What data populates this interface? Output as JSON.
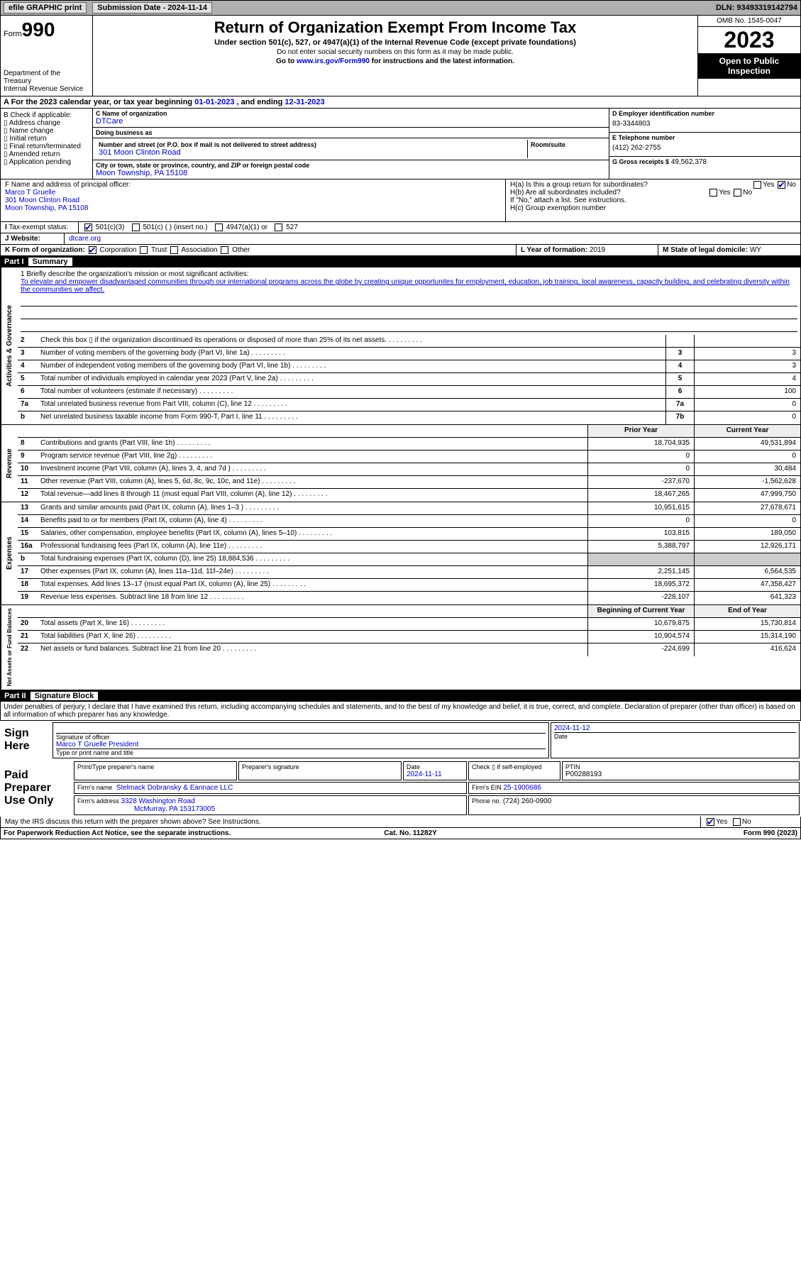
{
  "topbar": {
    "efile_label": "efile GRAPHIC print",
    "submission_label": "Submission Date - 2024-11-14",
    "dln_label": "DLN: 93493319142794"
  },
  "header": {
    "form_label": "Form",
    "form_number": "990",
    "title": "Return of Organization Exempt From Income Tax",
    "subtitle": "Under section 501(c), 527, or 4947(a)(1) of the Internal Revenue Code (except private foundations)",
    "note1": "Do not enter social security numbers on this form as it may be made public.",
    "note2_pre": "Go to ",
    "note2_link": "www.irs.gov/Form990",
    "note2_post": " for instructions and the latest information.",
    "dept": "Department of the Treasury",
    "irs": "Internal Revenue Service",
    "omb": "OMB No. 1545-0047",
    "year": "2023",
    "inspection": "Open to Public Inspection"
  },
  "period": {
    "text_pre": "A For the 2023 calendar year, or tax year beginning ",
    "begin": "01-01-2023",
    "mid": "   , and ending ",
    "end": "12-31-2023"
  },
  "boxB": {
    "label": "B Check if applicable:",
    "items": [
      "Address change",
      "Name change",
      "Initial return",
      "Final return/terminated",
      "Amended return",
      "Application pending"
    ]
  },
  "boxC": {
    "name_label": "C Name of organization",
    "name": "DTCare",
    "dba_label": "Doing business as",
    "street_label": "Number and street (or P.O. box if mail is not delivered to street address)",
    "street": "301 Moon Clinton Road",
    "room_label": "Room/suite",
    "city_label": "City or town, state or province, country, and ZIP or foreign postal code",
    "city": "Moon Township, PA  15108"
  },
  "boxD": {
    "label": "D Employer identification number",
    "value": "83-3344803"
  },
  "boxE": {
    "label": "E Telephone number",
    "value": "(412) 262-2755"
  },
  "boxG": {
    "label": "G Gross receipts $",
    "value": "49,562,378"
  },
  "boxF": {
    "label": "F  Name and address of principal officer:",
    "name": "Marco T Gruelle",
    "street": "301 Moon Clinton Road",
    "city": "Moon Township, PA  15108"
  },
  "boxH": {
    "a_label": "H(a)  Is this a group return for subordinates?",
    "b_label": "H(b)  Are all subordinates included?",
    "b_note": "If \"No,\" attach a list. See instructions.",
    "c_label": "H(c)  Group exemption number"
  },
  "boxI": {
    "label": "Tax-exempt status:",
    "opt1": "501(c)(3)",
    "opt2": "501(c) (  ) (insert no.)",
    "opt3": "4947(a)(1) or",
    "opt4": "527"
  },
  "boxJ": {
    "label": "Website:",
    "value": "dtcare.org"
  },
  "boxK": {
    "label": "K Form of organization:",
    "opts": [
      "Corporation",
      "Trust",
      "Association",
      "Other"
    ]
  },
  "boxL": {
    "label": "L Year of formation:",
    "value": "2019"
  },
  "boxM": {
    "label": "M State of legal domicile:",
    "value": "WY"
  },
  "part1": {
    "label": "Part I",
    "title": "Summary"
  },
  "mission": {
    "lead": "1   Briefly describe the organization's mission or most significant activities:",
    "text": "To elevate and empower disadvantaged communities through our international programs across the globe by creating unique opportunites for employment, education, job training, local awareness, capacity building, and celebrating diversity within the communities we affect."
  },
  "lines_gov": [
    {
      "n": "2",
      "d": "Check this box ▯ if the organization discontinued its operations or disposed of more than 25% of its net assets.",
      "box": "",
      "amt": ""
    },
    {
      "n": "3",
      "d": "Number of voting members of the governing body (Part VI, line 1a)",
      "box": "3",
      "amt": "3"
    },
    {
      "n": "4",
      "d": "Number of independent voting members of the governing body (Part VI, line 1b)",
      "box": "4",
      "amt": "3"
    },
    {
      "n": "5",
      "d": "Total number of individuals employed in calendar year 2023 (Part V, line 2a)",
      "box": "5",
      "amt": "4"
    },
    {
      "n": "6",
      "d": "Total number of volunteers (estimate if necessary)",
      "box": "6",
      "amt": "100"
    },
    {
      "n": "7a",
      "d": "Total unrelated business revenue from Part VIII, column (C), line 12",
      "box": "7a",
      "amt": "0"
    },
    {
      "n": "b",
      "d": "Net unrelated business taxable income from Form 990-T, Part I, line 11",
      "box": "7b",
      "amt": "0"
    }
  ],
  "rev_header": {
    "prior": "Prior Year",
    "current": "Current Year"
  },
  "lines_rev": [
    {
      "n": "8",
      "d": "Contributions and grants (Part VIII, line 1h)",
      "p": "18,704,935",
      "c": "49,531,894"
    },
    {
      "n": "9",
      "d": "Program service revenue (Part VIII, line 2g)",
      "p": "0",
      "c": "0"
    },
    {
      "n": "10",
      "d": "Investment income (Part VIII, column (A), lines 3, 4, and 7d )",
      "p": "0",
      "c": "30,484"
    },
    {
      "n": "11",
      "d": "Other revenue (Part VIII, column (A), lines 5, 6d, 8c, 9c, 10c, and 11e)",
      "p": "-237,670",
      "c": "-1,562,628"
    },
    {
      "n": "12",
      "d": "Total revenue—add lines 8 through 11 (must equal Part VIII, column (A), line 12)",
      "p": "18,467,265",
      "c": "47,999,750"
    }
  ],
  "lines_exp": [
    {
      "n": "13",
      "d": "Grants and similar amounts paid (Part IX, column (A), lines 1–3 )",
      "p": "10,951,615",
      "c": "27,678,671"
    },
    {
      "n": "14",
      "d": "Benefits paid to or for members (Part IX, column (A), line 4)",
      "p": "0",
      "c": "0"
    },
    {
      "n": "15",
      "d": "Salaries, other compensation, employee benefits (Part IX, column (A), lines 5–10)",
      "p": "103,815",
      "c": "189,050"
    },
    {
      "n": "16a",
      "d": "Professional fundraising fees (Part IX, column (A), line 11e)",
      "p": "5,388,797",
      "c": "12,926,171"
    },
    {
      "n": "b",
      "d": "Total fundraising expenses (Part IX, column (D), line 25) 18,884,536",
      "p": "__GRAY__",
      "c": "__GRAY__"
    },
    {
      "n": "17",
      "d": "Other expenses (Part IX, column (A), lines 11a–11d, 11f–24e)",
      "p": "2,251,145",
      "c": "6,564,535"
    },
    {
      "n": "18",
      "d": "Total expenses. Add lines 13–17 (must equal Part IX, column (A), line 25)",
      "p": "18,695,372",
      "c": "47,358,427"
    },
    {
      "n": "19",
      "d": "Revenue less expenses. Subtract line 18 from line 12",
      "p": "-228,107",
      "c": "641,323"
    }
  ],
  "net_header": {
    "begin": "Beginning of Current Year",
    "end": "End of Year"
  },
  "lines_net": [
    {
      "n": "20",
      "d": "Total assets (Part X, line 16)",
      "p": "10,679,875",
      "c": "15,730,814"
    },
    {
      "n": "21",
      "d": "Total liabilities (Part X, line 26)",
      "p": "10,904,574",
      "c": "15,314,190"
    },
    {
      "n": "22",
      "d": "Net assets or fund balances. Subtract line 21 from line 20",
      "p": "-224,699",
      "c": "416,624"
    }
  ],
  "section_labels": {
    "gov": "Activities & Governance",
    "rev": "Revenue",
    "exp": "Expenses",
    "net": "Net Assets or Fund Balances"
  },
  "part2": {
    "label": "Part II",
    "title": "Signature Block"
  },
  "perjury": "Under penalties of perjury, I declare that I have examined this return, including accompanying schedules and statements, and to the best of my knowledge and belief, it is true, correct, and complete. Declaration of preparer (other than officer) is based on all information of which preparer has any knowledge.",
  "sign": {
    "here": "Sign Here",
    "sig_officer_lbl": "Signature of officer",
    "officer": "Marco T Gruelle  President",
    "type_lbl": "Type or print name and title",
    "date": "2024-11-12",
    "date_lbl": "Date"
  },
  "preparer": {
    "label": "Paid Preparer Use Only",
    "name_lbl": "Print/Type preparer's name",
    "sig_lbl": "Preparer's signature",
    "date_lbl": "Date",
    "date": "2024-11-11",
    "self_lbl": "Check ▯ if self-employed",
    "ptin_lbl": "PTIN",
    "ptin": "P00288193",
    "firm_name_lbl": "Firm's name",
    "firm_name": "Stelmack Dobransky & Eannace LLC",
    "firm_ein_lbl": "Firm's EIN",
    "firm_ein": "25-1900686",
    "firm_addr_lbl": "Firm's address",
    "firm_addr": "3328 Washington Road",
    "firm_city": "McMurray, PA  153173005",
    "phone_lbl": "Phone no.",
    "phone": "(724) 260-0900"
  },
  "discuss": "May the IRS discuss this return with the preparer shown above? See Instructions.",
  "footer": {
    "left": "For Paperwork Reduction Act Notice, see the separate instructions.",
    "cat": "Cat. No. 11282Y",
    "right": "Form 990 (2023)"
  },
  "yesno": {
    "yes": "Yes",
    "no": "No"
  }
}
